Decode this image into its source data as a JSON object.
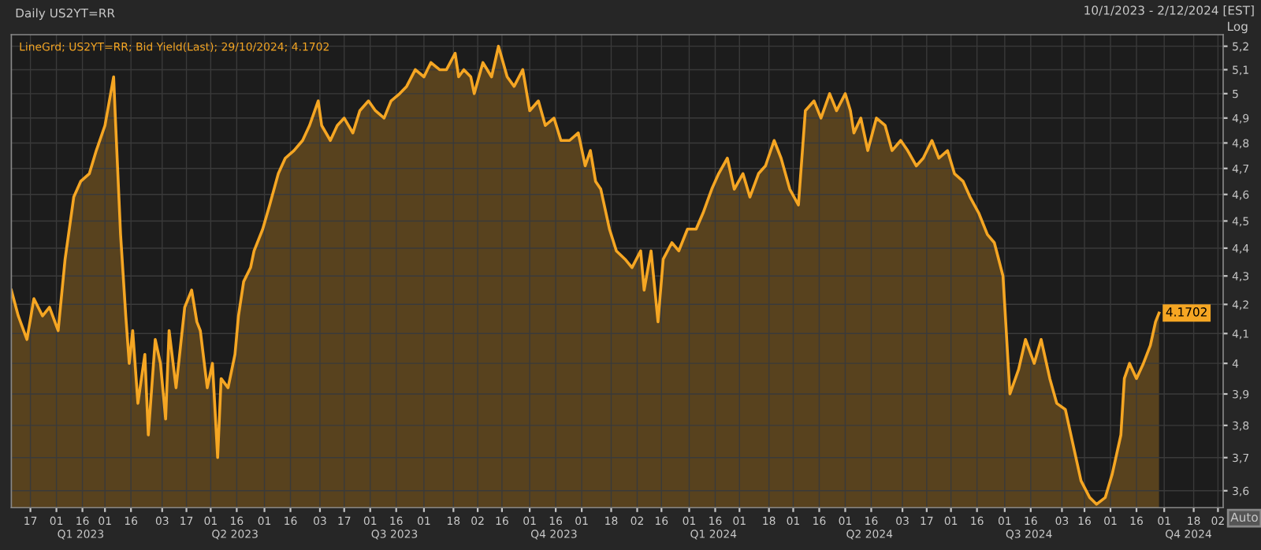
{
  "chart_data": {
    "type": "area",
    "title": "Daily US2YT=RR",
    "annotations": [
      "10/1/2023 - 2/12/2024 [EST]",
      "Log",
      "Auto"
    ],
    "log": "y",
    "grid": true,
    "legend": "top left",
    "marker": "none",
    "line_style": "solid",
    "xlim": [
      "2023-01-06",
      "2024-12-05"
    ],
    "ylim": [
      3.55,
      5.25
    ],
    "x2lim": [
      "2023-01-06",
      "2024-12-05"
    ],
    "x2ticks": [
      {
        "value": "2023-02-15",
        "label": "Q1 2023"
      },
      {
        "value": "2023-05-15",
        "label": "Q2 2023"
      },
      {
        "value": "2023-08-15",
        "label": "Q3 2023"
      },
      {
        "value": "2023-11-15",
        "label": "Q4 2023"
      },
      {
        "value": "2024-02-15",
        "label": "Q1 2024"
      },
      {
        "value": "2024-05-15",
        "label": "Q2 2024"
      },
      {
        "value": "2024-08-15",
        "label": "Q3 2024"
      },
      {
        "value": "2024-11-15",
        "label": "Q4 2024"
      }
    ],
    "yticks": [
      {
        "value": 3.6,
        "label": "3,6"
      },
      {
        "value": 3.7,
        "label": "3,7"
      },
      {
        "value": 3.8,
        "label": "3,8"
      },
      {
        "value": 3.9,
        "label": "3,9"
      },
      4,
      {
        "value": 4.1,
        "label": "4,1"
      },
      {
        "value": 4.2,
        "label": "4,2"
      },
      {
        "value": 4.3,
        "label": "4,3"
      },
      {
        "value": 4.4,
        "label": "4,4"
      },
      {
        "value": 4.5,
        "label": "4,5"
      },
      {
        "value": 4.6,
        "label": "4,6"
      },
      {
        "value": 4.7,
        "label": "4,7"
      },
      {
        "value": 4.8,
        "label": "4,8"
      },
      {
        "value": 4.9,
        "label": "4,9"
      },
      5,
      {
        "value": 5.1,
        "label": "5,1"
      },
      {
        "value": 5.2,
        "label": "5,2"
      }
    ],
    "xticks": [
      {
        "value": "2023-01-17",
        "label": "17"
      },
      {
        "value": "2023-02-01",
        "label": "01"
      },
      {
        "value": "2023-02-16",
        "label": "16"
      },
      {
        "value": "2023-03-01",
        "label": "01"
      },
      {
        "value": "2023-03-16",
        "label": "16"
      },
      {
        "value": "2023-04-03",
        "label": "03"
      },
      {
        "value": "2023-04-17",
        "label": "17"
      },
      {
        "value": "2023-05-01",
        "label": "01"
      },
      {
        "value": "2023-05-16",
        "label": "16"
      },
      {
        "value": "2023-06-01",
        "label": "01"
      },
      {
        "value": "2023-06-16",
        "label": "16"
      },
      {
        "value": "2023-07-03",
        "label": "03"
      },
      {
        "value": "2023-07-17",
        "label": "17"
      },
      {
        "value": "2023-08-01",
        "label": "01"
      },
      {
        "value": "2023-08-16",
        "label": "16"
      },
      {
        "value": "2023-09-01",
        "label": "01"
      },
      {
        "value": "2023-09-18",
        "label": "18"
      },
      {
        "value": "2023-10-02",
        "label": "02"
      },
      {
        "value": "2023-10-16",
        "label": "16"
      },
      {
        "value": "2023-11-01",
        "label": "01"
      },
      {
        "value": "2023-11-16",
        "label": "16"
      },
      {
        "value": "2023-12-01",
        "label": "01"
      },
      {
        "value": "2023-12-18",
        "label": "18"
      },
      {
        "value": "2024-01-02",
        "label": "02"
      },
      {
        "value": "2024-01-16",
        "label": "16"
      },
      {
        "value": "2024-02-01",
        "label": "01"
      },
      {
        "value": "2024-02-16",
        "label": "16"
      },
      {
        "value": "2024-03-01",
        "label": "01"
      },
      {
        "value": "2024-03-18",
        "label": "18"
      },
      {
        "value": "2024-04-01",
        "label": "01"
      },
      {
        "value": "2024-04-16",
        "label": "16"
      },
      {
        "value": "2024-05-01",
        "label": "01"
      },
      {
        "value": "2024-05-16",
        "label": "16"
      },
      {
        "value": "2024-06-03",
        "label": "03"
      },
      {
        "value": "2024-06-17",
        "label": "17"
      },
      {
        "value": "2024-07-01",
        "label": "01"
      },
      {
        "value": "2024-07-16",
        "label": "16"
      },
      {
        "value": "2024-08-01",
        "label": "01"
      },
      {
        "value": "2024-08-16",
        "label": "16"
      },
      {
        "value": "2024-09-03",
        "label": "03"
      },
      {
        "value": "2024-09-16",
        "label": "16"
      },
      {
        "value": "2024-10-01",
        "label": "01"
      },
      {
        "value": "2024-10-16",
        "label": "16"
      },
      {
        "value": "2024-11-01",
        "label": "01"
      },
      {
        "value": "2024-11-18",
        "label": "18"
      },
      {
        "value": "2024-12-02",
        "label": "02"
      }
    ],
    "series": [
      {
        "name": "LineGrd; US2YT=RR; Bid Yield(Last); 29/10/2024; 4.1702",
        "color": "#f5a623",
        "x": [
          "2023-01-06",
          "2023-01-10",
          "2023-01-15",
          "2023-01-19",
          "2023-01-24",
          "2023-01-28",
          "2023-02-02",
          "2023-02-06",
          "2023-02-11",
          "2023-02-15",
          "2023-02-20",
          "2023-02-24",
          "2023-03-01",
          "2023-03-06",
          "2023-03-07",
          "2023-03-10",
          "2023-03-13",
          "2023-03-15",
          "2023-03-17",
          "2023-03-20",
          "2023-03-24",
          "2023-03-26",
          "2023-03-30",
          "2023-04-02",
          "2023-04-05",
          "2023-04-07",
          "2023-04-11",
          "2023-04-14",
          "2023-04-16",
          "2023-04-20",
          "2023-04-23",
          "2023-04-25",
          "2023-04-29",
          "2023-05-02",
          "2023-05-05",
          "2023-05-07",
          "2023-05-11",
          "2023-05-15",
          "2023-05-17",
          "2023-05-20",
          "2023-05-24",
          "2023-05-26",
          "2023-05-31",
          "2023-06-04",
          "2023-06-09",
          "2023-06-13",
          "2023-06-18",
          "2023-06-23",
          "2023-06-27",
          "2023-07-02",
          "2023-07-04",
          "2023-07-09",
          "2023-07-13",
          "2023-07-17",
          "2023-07-22",
          "2023-07-26",
          "2023-07-31",
          "2023-08-04",
          "2023-08-09",
          "2023-08-13",
          "2023-08-18",
          "2023-08-22",
          "2023-08-27",
          "2023-09-01",
          "2023-09-05",
          "2023-09-10",
          "2023-09-14",
          "2023-09-19",
          "2023-09-21",
          "2023-09-24",
          "2023-09-28",
          "2023-09-30",
          "2023-10-05",
          "2023-10-10",
          "2023-10-14",
          "2023-10-19",
          "2023-10-23",
          "2023-10-28",
          "2023-11-01",
          "2023-11-06",
          "2023-11-10",
          "2023-11-15",
          "2023-11-19",
          "2023-11-24",
          "2023-11-29",
          "2023-12-03",
          "2023-12-06",
          "2023-12-09",
          "2023-12-12",
          "2023-12-17",
          "2023-12-21",
          "2023-12-26",
          "2023-12-30",
          "2024-01-04",
          "2024-01-06",
          "2024-01-10",
          "2024-01-14",
          "2024-01-17",
          "2024-01-22",
          "2024-01-26",
          "2024-01-31",
          "2024-02-05",
          "2024-02-09",
          "2024-02-14",
          "2024-02-18",
          "2024-02-23",
          "2024-02-27",
          "2024-03-03",
          "2024-03-07",
          "2024-03-12",
          "2024-03-16",
          "2024-03-21",
          "2024-03-25",
          "2024-03-30",
          "2024-04-04",
          "2024-04-08",
          "2024-04-13",
          "2024-04-17",
          "2024-04-22",
          "2024-04-26",
          "2024-05-01",
          "2024-05-04",
          "2024-05-06",
          "2024-05-10",
          "2024-05-14",
          "2024-05-19",
          "2024-05-24",
          "2024-05-28",
          "2024-06-02",
          "2024-06-06",
          "2024-06-11",
          "2024-06-15",
          "2024-06-20",
          "2024-06-24",
          "2024-06-29",
          "2024-07-03",
          "2024-07-08",
          "2024-07-12",
          "2024-07-17",
          "2024-07-22",
          "2024-07-26",
          "2024-07-31",
          "2024-08-04",
          "2024-08-09",
          "2024-08-13",
          "2024-08-18",
          "2024-08-22",
          "2024-08-27",
          "2024-08-31",
          "2024-09-05",
          "2024-09-09",
          "2024-09-14",
          "2024-09-19",
          "2024-09-23",
          "2024-09-28",
          "2024-10-02",
          "2024-10-07",
          "2024-10-09",
          "2024-10-12",
          "2024-10-16",
          "2024-10-20",
          "2024-10-24",
          "2024-10-27",
          "2024-10-29"
        ],
        "values": [
          4.25,
          4.16,
          4.08,
          4.22,
          4.16,
          4.19,
          4.11,
          4.36,
          4.59,
          4.65,
          4.68,
          4.77,
          4.87,
          5.07,
          4.9,
          4.45,
          4.16,
          4.0,
          4.11,
          3.87,
          4.03,
          3.77,
          4.08,
          4.0,
          3.82,
          4.11,
          3.92,
          4.08,
          4.19,
          4.25,
          4.14,
          4.11,
          3.92,
          4.0,
          3.7,
          3.95,
          3.92,
          4.03,
          4.16,
          4.28,
          4.33,
          4.39,
          4.47,
          4.56,
          4.68,
          4.74,
          4.77,
          4.81,
          4.87,
          4.97,
          4.87,
          4.81,
          4.87,
          4.9,
          4.84,
          4.93,
          4.97,
          4.93,
          4.9,
          4.97,
          5.0,
          5.03,
          5.1,
          5.07,
          5.13,
          5.1,
          5.1,
          5.17,
          5.07,
          5.1,
          5.07,
          5.0,
          5.13,
          5.07,
          5.2,
          5.07,
          5.03,
          5.1,
          4.93,
          4.97,
          4.87,
          4.9,
          4.81,
          4.81,
          4.84,
          4.71,
          4.77,
          4.65,
          4.62,
          4.47,
          4.39,
          4.36,
          4.33,
          4.39,
          4.25,
          4.39,
          4.14,
          4.36,
          4.42,
          4.39,
          4.47,
          4.47,
          4.53,
          4.62,
          4.68,
          4.74,
          4.62,
          4.68,
          4.59,
          4.68,
          4.71,
          4.81,
          4.74,
          4.62,
          4.56,
          4.93,
          4.97,
          4.9,
          5.0,
          4.93,
          5.0,
          4.93,
          4.84,
          4.9,
          4.77,
          4.9,
          4.87,
          4.77,
          4.81,
          4.77,
          4.71,
          4.74,
          4.81,
          4.74,
          4.77,
          4.68,
          4.65,
          4.59,
          4.53,
          4.45,
          4.42,
          4.3,
          3.9,
          3.98,
          4.08,
          4.0,
          4.08,
          3.95,
          3.87,
          3.85,
          3.75,
          3.63,
          3.58,
          3.56,
          3.58,
          3.65,
          3.77,
          3.95,
          4.0,
          3.95,
          4.0,
          4.06,
          4.14,
          4.1702
        ],
        "value_labels": [
          null,
          null,
          null,
          null,
          null,
          null,
          null,
          null,
          null,
          null,
          null,
          null,
          null,
          null,
          null,
          null,
          null,
          null,
          null,
          null,
          null,
          null,
          null,
          null,
          null,
          null,
          null,
          null,
          null,
          null,
          null,
          null,
          null,
          null,
          null,
          null,
          null,
          null,
          null,
          null,
          null,
          null,
          null,
          null,
          null,
          null,
          null,
          null,
          null,
          null,
          null,
          null,
          null,
          null,
          null,
          null,
          null,
          null,
          null,
          null,
          null,
          null,
          null,
          null,
          null,
          null,
          null,
          null,
          null,
          null,
          null,
          null,
          null,
          null,
          null,
          null,
          null,
          null,
          null,
          null,
          null,
          null,
          null,
          null,
          null,
          null,
          null,
          null,
          null,
          null,
          null,
          null,
          null,
          null,
          null,
          null,
          null,
          null,
          null,
          null,
          null,
          null,
          null,
          null,
          null,
          null,
          null,
          null,
          null,
          null,
          null,
          null,
          null,
          null,
          null,
          null,
          null,
          null,
          null,
          null,
          null,
          null,
          null,
          null,
          null,
          null,
          null,
          null,
          null,
          null,
          null,
          null,
          null,
          null,
          null,
          null,
          null,
          null,
          null,
          null,
          null,
          null,
          null,
          null,
          null,
          null,
          null,
          null,
          null,
          null,
          null,
          null,
          null,
          null,
          null,
          null,
          null,
          null,
          null,
          null,
          null,
          null,
          null,
          "4.1702"
        ]
      }
    ]
  }
}
